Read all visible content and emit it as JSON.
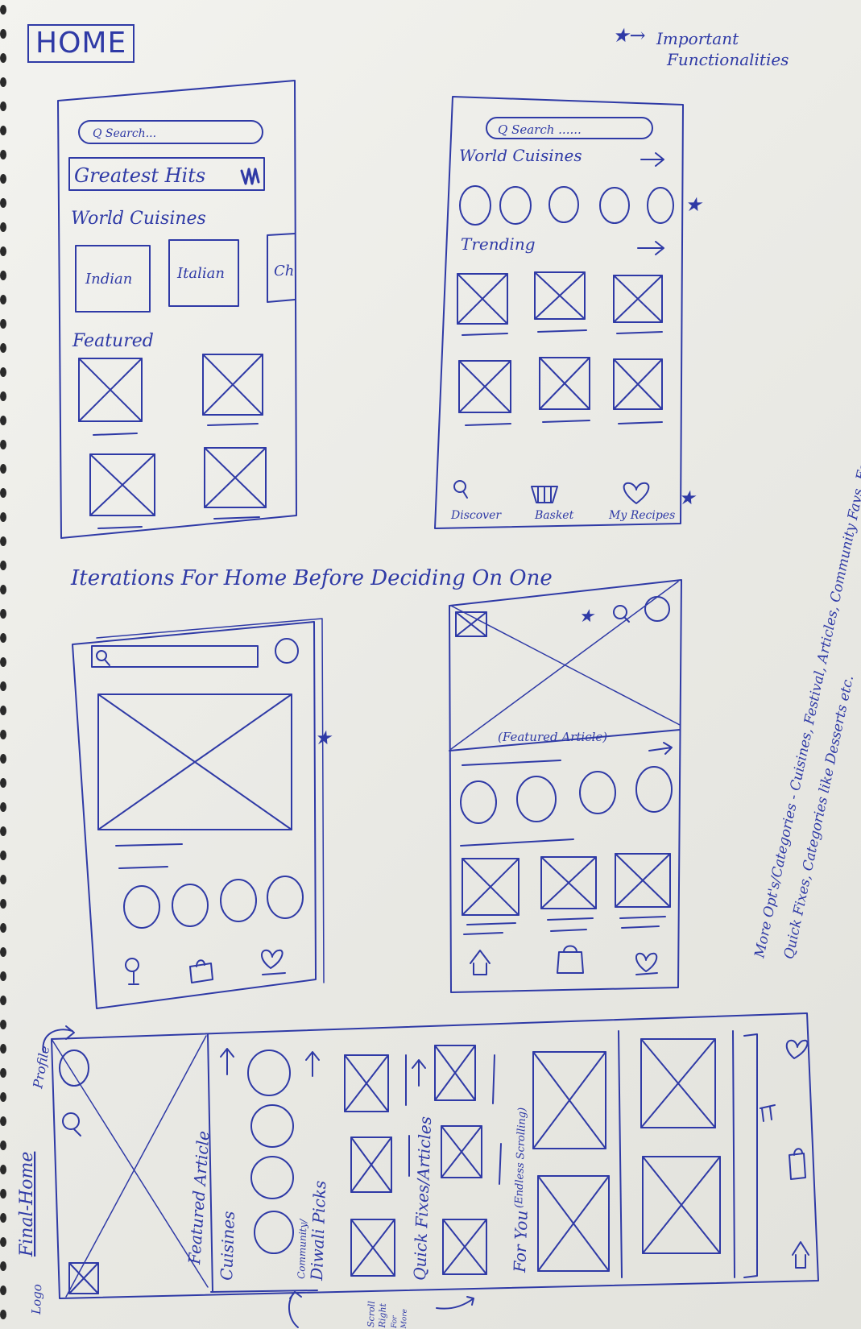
{
  "page": {
    "title": "HOME",
    "legend_symbol": "★→",
    "legend_line1": "Important",
    "legend_line2": "Functionalities",
    "iterations_caption": "Iterations For Home Before Deciding On One",
    "side_note_line1": "More Opt's/Categories - Cuisines, Festival, Articles, Community Favs, Featured,",
    "side_note_line2": "Quick Fixes, Categories like Desserts etc."
  },
  "sketch1": {
    "search": "Q Search...",
    "banner": "Greatest Hits",
    "section1": "World Cuisines",
    "cuisines": [
      "Indian",
      "Italian",
      "Ch"
    ],
    "section2": "Featured"
  },
  "sketch2": {
    "search": "Q Search ......",
    "section1": "World Cuisines",
    "section2": "Trending",
    "nav": [
      "Discover",
      "Basket",
      "My Recipes"
    ],
    "star": "★"
  },
  "sketch3": {
    "star": "★"
  },
  "sketch4": {
    "star": "★",
    "featured": "(Featured Article)"
  },
  "final": {
    "title": "Final-Home",
    "profile": "Profile",
    "logo": "Logo",
    "featured": "Featured Article",
    "cuisines": "Cuisines",
    "community_line1": "Community/",
    "community_line2": "Diwali Picks",
    "quick": "Quick Fixes/Articles",
    "foryou": "For You",
    "endless": "(Endless Scrolling)",
    "scroll1": "Scroll",
    "scroll2": "Right",
    "scroll3": "For",
    "scroll4": "More"
  },
  "colors": {
    "ink": "#2f3aa6",
    "paper": "#efefeb"
  }
}
